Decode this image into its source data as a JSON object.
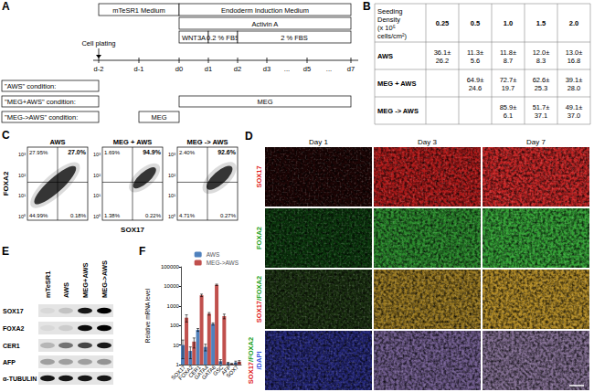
{
  "panels": {
    "A": {
      "panel_label": "A",
      "timeline": [
        "d-2",
        "d-1",
        "d0",
        "d1",
        "d2",
        "d3",
        "d5",
        "d7"
      ],
      "gap_marks": [
        "...",
        "..."
      ],
      "bars": [
        [
          {
            "text": "mTeSR1 Medium",
            "from": "d-2",
            "to": "d0"
          },
          {
            "text": "Endoderm Induction Medium",
            "from": "d0",
            "to": "d7"
          }
        ],
        [
          {
            "text": "Activin A",
            "from": "d0",
            "to": "d7"
          }
        ],
        [
          {
            "text": "WNT3A",
            "from": "d0",
            "to": "d1"
          },
          {
            "text": "0.2 % FBS",
            "from": "d1",
            "to": "d2"
          },
          {
            "text": "2 % FBS",
            "from": "d2",
            "to": "d7"
          }
        ]
      ],
      "cell_plating": {
        "text": "Cell plating",
        "at": "d-2"
      },
      "conditions": [
        {
          "label": "\"AWS\" condition:",
          "bars": []
        },
        {
          "label": "\"MEG+AWS\" condition:",
          "bars": [
            {
              "text": "MEG",
              "from": "d0",
              "to": "d7"
            }
          ]
        },
        {
          "label": "\"MEG->AWS\" condition:",
          "bars": [
            {
              "text": "MEG",
              "from": "d-1",
              "to": "d0"
            }
          ]
        }
      ]
    },
    "B": {
      "panel_label": "B",
      "header": [
        [
          "Seeding",
          "Density",
          "(x 10⁵",
          "cells/cm²)"
        ],
        [
          "0.25"
        ],
        [
          "0.5"
        ],
        [
          "1.0"
        ],
        [
          "1.5"
        ],
        [
          "2.0"
        ]
      ],
      "rows": [
        {
          "label": "AWS",
          "cells": [
            [
              "36.1±",
              "26.2"
            ],
            [
              "11.3±",
              "5.6"
            ],
            [
              "11.8±",
              "8.7"
            ],
            [
              "12.0±",
              "8.3"
            ],
            [
              "13.0±",
              "16.8"
            ]
          ]
        },
        {
          "label": "MEG + AWS",
          "cells": [
            null,
            [
              "64.9±",
              "24.6"
            ],
            [
              "72.7±",
              "19.7"
            ],
            [
              "62.6±",
              "25.3"
            ],
            [
              "39.1±",
              "28.0"
            ]
          ]
        },
        {
          "label": "MEG -> AWS",
          "cells": [
            null,
            null,
            [
              "85.9±",
              "6.1"
            ],
            [
              "51.7±",
              "37.1"
            ],
            [
              "49.1±",
              "37.0"
            ]
          ]
        }
      ]
    },
    "C": {
      "panel_label": "C",
      "x_label": "SOX17",
      "y_label": "FOXA2",
      "y_ticks": [
        "10⁰",
        "10¹",
        "10²",
        "10³"
      ],
      "plots": [
        {
          "title": "AWS",
          "ul": "27.95%",
          "ur": "27.0%",
          "ll": "44.99%",
          "lr": "0.18%"
        },
        {
          "title": "MEG + AWS",
          "ul": "1.69%",
          "ur": "94.9%",
          "ll": "1.38%",
          "lr": "0.22%"
        },
        {
          "title": "MEG -> AWS",
          "ul": "2.40%",
          "ur": "92.6%",
          "ll": "4.71%",
          "lr": "0.27%"
        }
      ]
    },
    "D": {
      "panel_label": "D",
      "columns": [
        "Day 1",
        "Day 3",
        "Day 7"
      ],
      "rows": [
        {
          "label_lines": [
            [
              {
                "text": "SOX17",
                "color": "#e02020"
              }
            ]
          ]
        },
        {
          "label_lines": [
            [
              {
                "text": "FOXA2",
                "color": "#20a020"
              }
            ]
          ]
        },
        {
          "label_lines": [
            [
              {
                "text": "SOX17",
                "color": "#e02020"
              },
              {
                "text": "/FOXA2",
                "color": "#20a020"
              }
            ]
          ]
        },
        {
          "label_lines": [
            [
              {
                "text": "SOX17",
                "color": "#e02020"
              },
              {
                "text": "/FOXA2",
                "color": "#20a020"
              }
            ],
            [
              {
                "text": "/DAPI",
                "color": "#3050e0"
              }
            ]
          ]
        }
      ]
    },
    "E": {
      "panel_label": "E",
      "lanes": [
        "mTeSR1",
        "AWS",
        "MEG+AWS",
        "MEG->AWS"
      ],
      "rows": [
        {
          "label": "SOX17",
          "band_levels": [
            0.05,
            0.15,
            0.9,
            1.0
          ]
        },
        {
          "label": "FOXA2",
          "band_levels": [
            0.05,
            0.1,
            0.95,
            1.0
          ]
        },
        {
          "label": "CER1",
          "band_levels": [
            0.2,
            0.5,
            0.7,
            0.9
          ]
        },
        {
          "label": "AFP",
          "band_levels": [
            0.3,
            0.3,
            0.3,
            0.35
          ]
        },
        {
          "label": "α-TUBULIN",
          "band_levels": [
            0.9,
            0.9,
            0.9,
            0.9
          ]
        }
      ]
    }
  },
  "chart_data": {
    "panel_label": "F",
    "type": "bar",
    "log": "y",
    "categories": [
      "SOX17",
      "FOXA2",
      "CER1",
      "GATA4",
      "GATA6",
      "GSC",
      "AFP",
      "SOX7"
    ],
    "series": [
      {
        "name": "AWS",
        "color": "#4f81bd",
        "values": [
          10,
          5,
          60,
          8,
          120,
          1.5,
          1.2,
          1.3
        ],
        "errors": [
          8,
          3,
          10,
          3,
          15,
          0.3,
          0.1,
          0.2
        ]
      },
      {
        "name": "MEG->AWS",
        "color": "#c0504d",
        "values": [
          250,
          15,
          3500,
          400,
          12000,
          300,
          1.1,
          1.4
        ],
        "errors": [
          100,
          8,
          500,
          60,
          1000,
          80,
          0.05,
          0.2
        ]
      }
    ],
    "ylim": [
      1,
      100000
    ],
    "yticks": [
      1,
      10,
      100,
      1000,
      10000,
      100000
    ],
    "y_label": "Relative mRNA level",
    "legend": "top-right",
    "grid": false
  }
}
